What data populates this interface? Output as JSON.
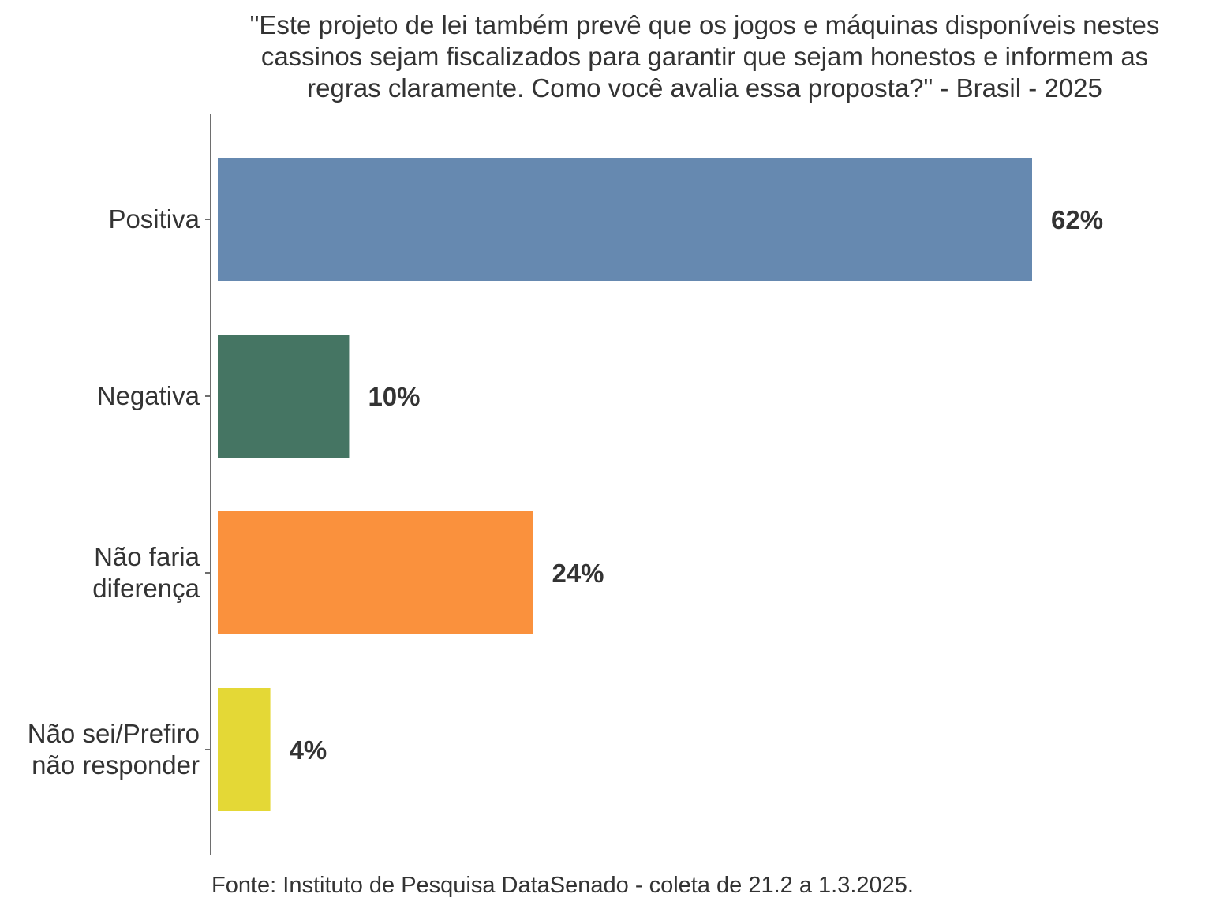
{
  "chart_data": {
    "type": "bar",
    "orientation": "horizontal",
    "title_lines": [
      "\"Este projeto de lei também prevê que os jogos e máquinas disponíveis nestes",
      "cassinos sejam fiscalizados para garantir que sejam honestos e informem as",
      "regras claramente. Como você avalia essa proposta?\" - Brasil - 2025"
    ],
    "categories": [
      [
        "Positiva"
      ],
      [
        "Negativa"
      ],
      [
        "Não faria",
        "diferença"
      ],
      [
        "Não sei/Prefiro",
        "não responder"
      ]
    ],
    "values": [
      62,
      10,
      24,
      4
    ],
    "value_labels": [
      "62%",
      "10%",
      "24%",
      "4%"
    ],
    "colors": [
      "#6689B0",
      "#457563",
      "#FA913D",
      "#E4D836"
    ],
    "xlim": [
      0,
      66
    ],
    "grid": false,
    "legend": "none",
    "source": "Fonte: Instituto de Pesquisa DataSenado - coleta de 21.2 a 1.3.2025."
  }
}
